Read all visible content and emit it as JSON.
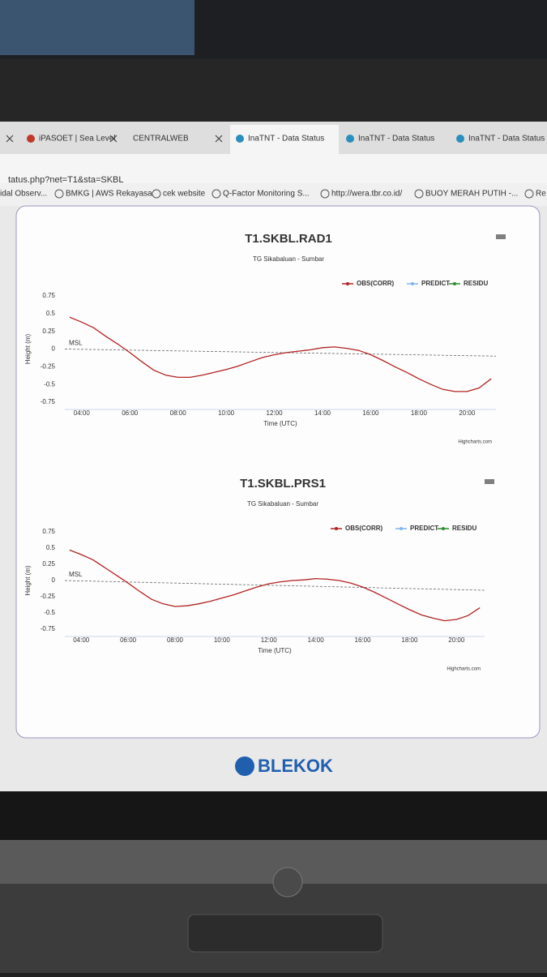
{
  "browser": {
    "tabs": [
      "iPASOET | Sea Level",
      "CENTRALWEB",
      "InaTNT - Data Status",
      "InaTNT - Data Status",
      "InaTNT - Data Status"
    ],
    "url": "tatus.php?net=T1&sta=SKBL",
    "bookmarks": [
      "idal Observ...",
      "BMKG | AWS Rekayasa",
      "cek website",
      "Q-Factor Monitoring S...",
      "http://wera.tbr.co.id/",
      "BUOY MERAH PUTIH -...",
      "Re"
    ],
    "logo": "BLEKOK"
  },
  "chart_data": [
    {
      "type": "line",
      "title": "T1.SKBL.RAD1",
      "subtitle": "TG Sikabaluan - Sumbar",
      "x_label": "Time (UTC)",
      "y_label": "Height (m)",
      "credit": "Highcharts.com",
      "x": [
        3.5,
        4,
        4.5,
        5,
        5.5,
        6,
        6.5,
        7,
        7.5,
        8,
        8.5,
        9,
        9.5,
        10,
        10.5,
        11,
        11.5,
        12,
        12.5,
        13,
        13.5,
        14,
        14.5,
        15,
        15.5,
        16,
        16.5,
        17,
        17.5,
        18,
        18.5,
        19,
        19.5,
        20,
        20.5,
        21
      ],
      "series": [
        {
          "name": "OBS(CORR)",
          "color": "#b22222",
          "values": [
            0.45,
            0.38,
            0.3,
            0.18,
            0.07,
            -0.05,
            -0.18,
            -0.3,
            -0.37,
            -0.4,
            -0.4,
            -0.37,
            -0.33,
            -0.29,
            -0.24,
            -0.18,
            -0.12,
            -0.08,
            -0.05,
            -0.03,
            -0.01,
            0.02,
            0.03,
            0.01,
            -0.02,
            -0.08,
            -0.16,
            -0.25,
            -0.33,
            -0.42,
            -0.5,
            -0.57,
            -0.6,
            -0.6,
            -0.55,
            -0.42
          ]
        },
        {
          "name": "PREDICT",
          "color": "#7cb5ec",
          "values": [
            null,
            null,
            null,
            null,
            null,
            null,
            null,
            null,
            null,
            null,
            null,
            null,
            null,
            null,
            null,
            null,
            null,
            null,
            null,
            null,
            null,
            null,
            null,
            null,
            null,
            null,
            null,
            null,
            null,
            null,
            null,
            null,
            null,
            null,
            null,
            null
          ]
        },
        {
          "name": "RESIDU",
          "color": "#2e8b2e",
          "values": [
            null,
            null,
            null,
            null,
            null,
            null,
            null,
            null,
            null,
            null,
            null,
            null,
            null,
            null,
            null,
            null,
            null,
            null,
            null,
            null,
            null,
            null,
            null,
            null,
            null,
            null,
            null,
            null,
            null,
            null,
            null,
            null,
            null,
            null,
            null,
            null
          ]
        }
      ],
      "msl": {
        "label": "MSL",
        "values": [
          0,
          -0.1
        ]
      },
      "xlim": [
        3.3,
        21.2
      ],
      "xticks": [
        {
          "value": 4,
          "label": "04:00"
        },
        {
          "value": 6,
          "label": "06:00"
        },
        {
          "value": 8,
          "label": "08:00"
        },
        {
          "value": 10,
          "label": "10:00"
        },
        {
          "value": 12,
          "label": "12:00"
        },
        {
          "value": 14,
          "label": "14:00"
        },
        {
          "value": 16,
          "label": "16:00"
        },
        {
          "value": 18,
          "label": "18:00"
        },
        {
          "value": 20,
          "label": "20:00"
        }
      ],
      "ylim": [
        -0.75,
        0.75
      ],
      "yticks": [
        0.75,
        0.5,
        0.25,
        0,
        -0.25,
        -0.5,
        -0.75
      ],
      "grid": false
    },
    {
      "type": "line",
      "title": "T1.SKBL.PRS1",
      "subtitle": "TG Sikabaluan - Sumbar",
      "x_label": "Time (UTC)",
      "y_label": "Height (m)",
      "credit": "Highcharts.com",
      "x": [
        3.5,
        4,
        4.5,
        5,
        5.5,
        6,
        6.5,
        7,
        7.5,
        8,
        8.5,
        9,
        9.5,
        10,
        10.5,
        11,
        11.5,
        12,
        12.5,
        13,
        13.5,
        14,
        14.5,
        15,
        15.5,
        16,
        16.5,
        17,
        17.5,
        18,
        18.5,
        19,
        19.5,
        20,
        20.5,
        21
      ],
      "series": [
        {
          "name": "OBS(CORR)",
          "color": "#b22222",
          "values": [
            0.47,
            0.4,
            0.32,
            0.2,
            0.08,
            -0.04,
            -0.17,
            -0.29,
            -0.36,
            -0.4,
            -0.39,
            -0.36,
            -0.32,
            -0.27,
            -0.22,
            -0.16,
            -0.1,
            -0.05,
            -0.02,
            0.0,
            0.01,
            0.03,
            0.02,
            0.0,
            -0.04,
            -0.1,
            -0.18,
            -0.27,
            -0.36,
            -0.45,
            -0.53,
            -0.58,
            -0.62,
            -0.6,
            -0.54,
            -0.42
          ]
        },
        {
          "name": "PREDICT",
          "color": "#7cb5ec",
          "values": [
            null,
            null,
            null,
            null,
            null,
            null,
            null,
            null,
            null,
            null,
            null,
            null,
            null,
            null,
            null,
            null,
            null,
            null,
            null,
            null,
            null,
            null,
            null,
            null,
            null,
            null,
            null,
            null,
            null,
            null,
            null,
            null,
            null,
            null,
            null,
            null
          ]
        },
        {
          "name": "RESIDU",
          "color": "#2e8b2e",
          "values": [
            null,
            null,
            null,
            null,
            null,
            null,
            null,
            null,
            null,
            null,
            null,
            null,
            null,
            null,
            null,
            null,
            null,
            null,
            null,
            null,
            null,
            null,
            null,
            null,
            null,
            null,
            null,
            null,
            null,
            null,
            null,
            null,
            null,
            null,
            null,
            null
          ]
        }
      ],
      "msl": {
        "label": "MSL",
        "values": [
          0,
          -0.15
        ]
      },
      "xlim": [
        3.3,
        21.2
      ],
      "xticks": [
        {
          "value": 4,
          "label": "04:00"
        },
        {
          "value": 6,
          "label": "06:00"
        },
        {
          "value": 8,
          "label": "08:00"
        },
        {
          "value": 10,
          "label": "10:00"
        },
        {
          "value": 12,
          "label": "12:00"
        },
        {
          "value": 14,
          "label": "14:00"
        },
        {
          "value": 16,
          "label": "16:00"
        },
        {
          "value": 18,
          "label": "18:00"
        },
        {
          "value": 20,
          "label": "20:00"
        }
      ],
      "ylim": [
        -0.75,
        0.75
      ],
      "yticks": [
        0.75,
        0.5,
        0.25,
        0,
        -0.25,
        -0.5,
        -0.75
      ],
      "grid": false
    }
  ]
}
